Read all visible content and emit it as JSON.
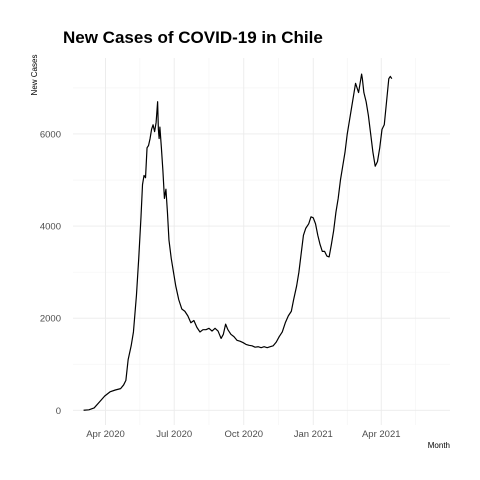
{
  "chart_data": {
    "type": "line",
    "title": "New Cases of COVID-19 in Chile",
    "xlabel": "Month",
    "ylabel": "New Cases",
    "x_ticks": [
      {
        "date": "2020-04-01",
        "label": "Apr 2020"
      },
      {
        "date": "2020-07-01",
        "label": "Jul 2020"
      },
      {
        "date": "2020-10-01",
        "label": "Oct 2020"
      },
      {
        "date": "2021-01-01",
        "label": "Jan 2021"
      },
      {
        "date": "2021-04-01",
        "label": "Apr 2021"
      }
    ],
    "y_ticks": [
      0,
      2000,
      4000,
      6000
    ],
    "xlim": [
      "2020-02-18",
      "2021-07-01"
    ],
    "ylim": [
      -320,
      7650
    ],
    "grid": true,
    "series": [
      {
        "points": [
          [
            "2020-03-03",
            0
          ],
          [
            "2020-03-10",
            10
          ],
          [
            "2020-03-17",
            50
          ],
          [
            "2020-03-24",
            180
          ],
          [
            "2020-03-31",
            310
          ],
          [
            "2020-04-07",
            400
          ],
          [
            "2020-04-14",
            440
          ],
          [
            "2020-04-21",
            470
          ],
          [
            "2020-04-25",
            550
          ],
          [
            "2020-04-28",
            650
          ],
          [
            "2020-05-01",
            1100
          ],
          [
            "2020-05-05",
            1400
          ],
          [
            "2020-05-08",
            1700
          ],
          [
            "2020-05-12",
            2500
          ],
          [
            "2020-05-15",
            3300
          ],
          [
            "2020-05-18",
            4200
          ],
          [
            "2020-05-20",
            4900
          ],
          [
            "2020-05-22",
            5100
          ],
          [
            "2020-05-24",
            5050
          ],
          [
            "2020-05-26",
            5700
          ],
          [
            "2020-05-28",
            5750
          ],
          [
            "2020-05-30",
            5900
          ],
          [
            "2020-06-01",
            6100
          ],
          [
            "2020-06-03",
            6200
          ],
          [
            "2020-06-05",
            6050
          ],
          [
            "2020-06-07",
            6250
          ],
          [
            "2020-06-09",
            6700
          ],
          [
            "2020-06-10",
            6100
          ],
          [
            "2020-06-11",
            5900
          ],
          [
            "2020-06-12",
            6150
          ],
          [
            "2020-06-14",
            5700
          ],
          [
            "2020-06-16",
            5200
          ],
          [
            "2020-06-18",
            4600
          ],
          [
            "2020-06-20",
            4800
          ],
          [
            "2020-06-22",
            4300
          ],
          [
            "2020-06-24",
            3700
          ],
          [
            "2020-06-27",
            3300
          ],
          [
            "2020-06-30",
            3000
          ],
          [
            "2020-07-03",
            2700
          ],
          [
            "2020-07-07",
            2400
          ],
          [
            "2020-07-11",
            2200
          ],
          [
            "2020-07-15",
            2150
          ],
          [
            "2020-07-19",
            2050
          ],
          [
            "2020-07-23",
            1900
          ],
          [
            "2020-07-27",
            1950
          ],
          [
            "2020-07-31",
            1800
          ],
          [
            "2020-08-04",
            1700
          ],
          [
            "2020-08-08",
            1750
          ],
          [
            "2020-08-12",
            1750
          ],
          [
            "2020-08-16",
            1780
          ],
          [
            "2020-08-20",
            1720
          ],
          [
            "2020-08-24",
            1780
          ],
          [
            "2020-08-28",
            1720
          ],
          [
            "2020-09-01",
            1560
          ],
          [
            "2020-09-04",
            1650
          ],
          [
            "2020-09-07",
            1870
          ],
          [
            "2020-09-10",
            1750
          ],
          [
            "2020-09-14",
            1650
          ],
          [
            "2020-09-18",
            1600
          ],
          [
            "2020-09-22",
            1520
          ],
          [
            "2020-09-26",
            1500
          ],
          [
            "2020-09-30",
            1470
          ],
          [
            "2020-10-04",
            1430
          ],
          [
            "2020-10-08",
            1410
          ],
          [
            "2020-10-12",
            1400
          ],
          [
            "2020-10-16",
            1370
          ],
          [
            "2020-10-20",
            1380
          ],
          [
            "2020-10-24",
            1360
          ],
          [
            "2020-10-28",
            1380
          ],
          [
            "2020-11-01",
            1360
          ],
          [
            "2020-11-05",
            1380
          ],
          [
            "2020-11-09",
            1400
          ],
          [
            "2020-11-13",
            1480
          ],
          [
            "2020-11-17",
            1600
          ],
          [
            "2020-11-21",
            1700
          ],
          [
            "2020-11-25",
            1900
          ],
          [
            "2020-11-29",
            2050
          ],
          [
            "2020-12-03",
            2150
          ],
          [
            "2020-12-06",
            2400
          ],
          [
            "2020-12-10",
            2700
          ],
          [
            "2020-12-13",
            3000
          ],
          [
            "2020-12-16",
            3400
          ],
          [
            "2020-12-19",
            3800
          ],
          [
            "2020-12-22",
            3950
          ],
          [
            "2020-12-26",
            4050
          ],
          [
            "2020-12-29",
            4200
          ],
          [
            "2021-01-01",
            4180
          ],
          [
            "2021-01-04",
            4050
          ],
          [
            "2021-01-07",
            3800
          ],
          [
            "2021-01-10",
            3600
          ],
          [
            "2021-01-13",
            3450
          ],
          [
            "2021-01-16",
            3450
          ],
          [
            "2021-01-19",
            3350
          ],
          [
            "2021-01-22",
            3330
          ],
          [
            "2021-01-25",
            3600
          ],
          [
            "2021-01-28",
            3900
          ],
          [
            "2021-01-31",
            4300
          ],
          [
            "2021-02-03",
            4600
          ],
          [
            "2021-02-06",
            5000
          ],
          [
            "2021-02-09",
            5300
          ],
          [
            "2021-02-12",
            5600
          ],
          [
            "2021-02-15",
            6000
          ],
          [
            "2021-02-18",
            6300
          ],
          [
            "2021-02-21",
            6600
          ],
          [
            "2021-02-24",
            6900
          ],
          [
            "2021-02-26",
            7100
          ],
          [
            "2021-02-28",
            7000
          ],
          [
            "2021-03-02",
            6900
          ],
          [
            "2021-03-04",
            7100
          ],
          [
            "2021-03-06",
            7300
          ],
          [
            "2021-03-07",
            7200
          ],
          [
            "2021-03-09",
            6900
          ],
          [
            "2021-03-12",
            6700
          ],
          [
            "2021-03-15",
            6400
          ],
          [
            "2021-03-18",
            6000
          ],
          [
            "2021-03-21",
            5600
          ],
          [
            "2021-03-24",
            5300
          ],
          [
            "2021-03-27",
            5400
          ],
          [
            "2021-03-30",
            5700
          ],
          [
            "2021-04-02",
            6100
          ],
          [
            "2021-04-05",
            6200
          ],
          [
            "2021-04-08",
            6700
          ],
          [
            "2021-04-11",
            7200
          ],
          [
            "2021-04-13",
            7250
          ],
          [
            "2021-04-15",
            7200
          ]
        ]
      }
    ]
  }
}
